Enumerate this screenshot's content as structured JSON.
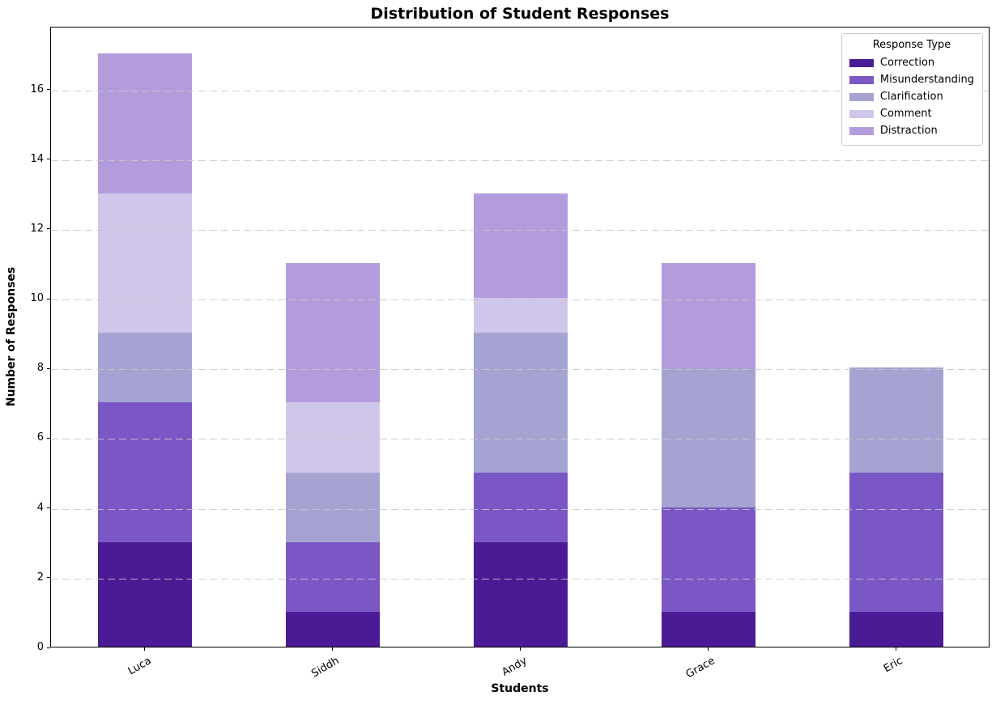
{
  "chart_data": {
    "type": "bar",
    "stacked": true,
    "title": "Distribution of Student Responses",
    "xlabel": "Students",
    "ylabel": "Number of Responses",
    "categories": [
      "Luca",
      "Siddh",
      "Andy",
      "Grace",
      "Eric"
    ],
    "series": [
      {
        "name": "Correction",
        "color": "#4B1B95",
        "values": [
          3,
          1,
          3,
          1,
          1
        ]
      },
      {
        "name": "Misunderstanding",
        "color": "#7B57C5",
        "values": [
          4,
          2,
          2,
          3,
          4
        ]
      },
      {
        "name": "Clarification",
        "color": "#A5A3D2",
        "values": [
          2,
          2,
          4,
          4,
          3
        ]
      },
      {
        "name": "Comment",
        "color": "#D0C6EA",
        "values": [
          4,
          2,
          1,
          0,
          0
        ]
      },
      {
        "name": "Distraction",
        "color": "#B49CDC",
        "values": [
          4,
          4,
          3,
          3,
          0
        ]
      }
    ],
    "totals": [
      17,
      11,
      13,
      11,
      8
    ],
    "legend_title": "Response Type",
    "legend_position": "upper right",
    "y_ticks": [
      0,
      2,
      4,
      6,
      8,
      10,
      12,
      14,
      16
    ],
    "ylim": [
      0,
      17.8
    ],
    "x_tick_rotation_deg": 30,
    "grid": "horizontal dashed",
    "gridline_color": "#cccccc",
    "background_color": "#ffffff",
    "bar_width_fraction": 0.5
  }
}
